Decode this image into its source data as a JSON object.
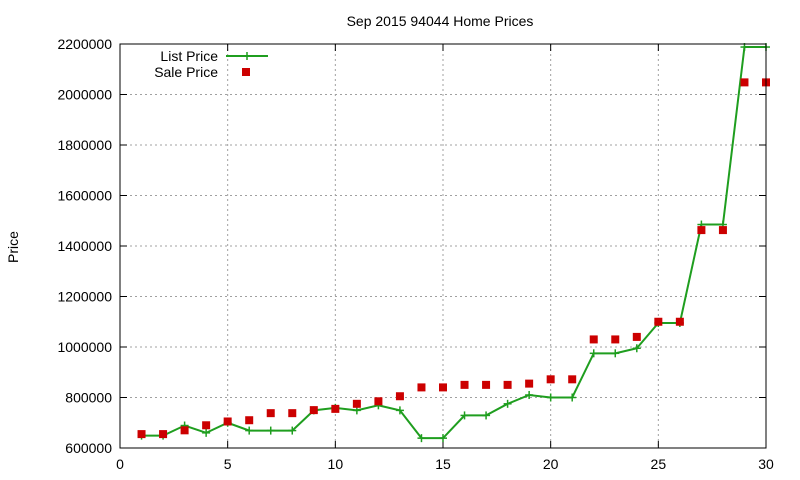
{
  "chart_data": {
    "type": "line",
    "title": "Sep 2015 94044 Home Prices",
    "xlabel": "",
    "ylabel": "Price",
    "xlim": [
      0,
      30
    ],
    "ylim": [
      600000,
      2200000
    ],
    "x_ticks": [
      0,
      5,
      10,
      15,
      20,
      25,
      30
    ],
    "y_ticks": [
      600000,
      800000,
      1000000,
      1200000,
      1400000,
      1600000,
      1800000,
      2000000,
      2200000
    ],
    "x_tick_labels": [
      "0",
      "5",
      "10",
      "15",
      "20",
      "25",
      "30"
    ],
    "y_tick_labels": [
      "600000",
      "800000",
      "1000000",
      "1200000",
      "1400000",
      "1600000",
      "1800000",
      "2000000",
      "2200000"
    ],
    "grid": true,
    "legend_position": "top-left",
    "x": [
      1,
      2,
      3,
      4,
      5,
      6,
      7,
      8,
      9,
      10,
      11,
      12,
      13,
      14,
      15,
      16,
      17,
      18,
      19,
      20,
      21,
      22,
      23,
      24,
      25,
      26,
      27,
      28,
      29,
      30
    ],
    "series": [
      {
        "name": "List Price",
        "style": "line-plus",
        "color": "#1f9e1f",
        "values": [
          649000,
          649000,
          689000,
          660000,
          700000,
          669000,
          669000,
          669000,
          749000,
          759000,
          749000,
          769000,
          749000,
          639000,
          639000,
          729000,
          729000,
          775000,
          810000,
          800000,
          800000,
          975000,
          975000,
          995000,
          1095000,
          1095000,
          1485000,
          1485000,
          2188000,
          2188000
        ]
      },
      {
        "name": "Sale Price",
        "style": "square",
        "color": "#cc0000",
        "values": [
          655000,
          655000,
          670000,
          690000,
          705000,
          710000,
          738000,
          738000,
          750000,
          755000,
          775000,
          785000,
          805000,
          840000,
          840000,
          850000,
          850000,
          850000,
          855000,
          872000,
          872000,
          1030000,
          1030000,
          1040000,
          1100000,
          1100000,
          1463000,
          1463000,
          2048000,
          2048000
        ]
      }
    ]
  }
}
